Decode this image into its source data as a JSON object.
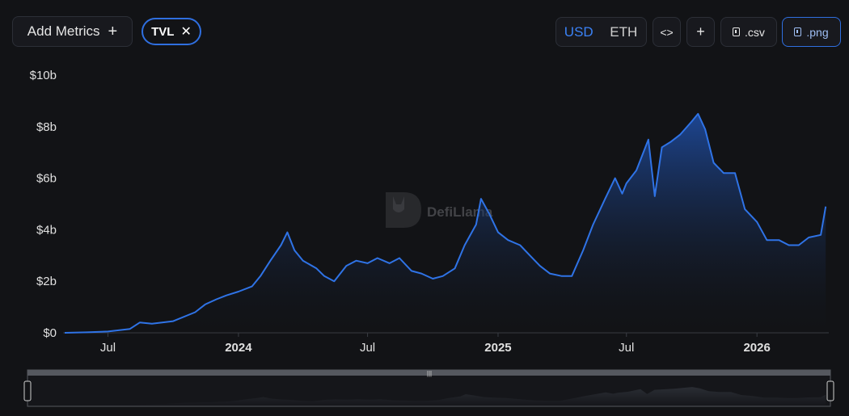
{
  "toolbar": {
    "add_metrics_label": "Add Metrics",
    "add_metrics_icon": "plus-icon",
    "metric_chip_label": "TVL",
    "metric_chip_icon": "close-icon",
    "currency_usd": "USD",
    "currency_eth": "ETH",
    "selected_currency": "USD",
    "embed_icon": "code-icon",
    "add_icon": "plus-icon",
    "csv_label": ".csv",
    "png_label": ".png",
    "download_icon": "download-file-icon"
  },
  "watermark": {
    "text": "DefiLlama",
    "icon": "llama-logo-icon"
  },
  "colors": {
    "line": "#2f73e6",
    "accent": "#3b82f6",
    "background": "#121316"
  },
  "chart_data": {
    "type": "area",
    "series": [
      {
        "name": "TVL",
        "points": [
          [
            "2023-05-01",
            0.0
          ],
          [
            "2023-06-01",
            0.02
          ],
          [
            "2023-07-01",
            0.05
          ],
          [
            "2023-08-01",
            0.15
          ],
          [
            "2023-08-15",
            0.4
          ],
          [
            "2023-09-01",
            0.35
          ],
          [
            "2023-10-01",
            0.45
          ],
          [
            "2023-11-01",
            0.8
          ],
          [
            "2023-11-15",
            1.1
          ],
          [
            "2023-12-01",
            1.3
          ],
          [
            "2023-12-15",
            1.45
          ],
          [
            "2024-01-01",
            1.6
          ],
          [
            "2024-01-20",
            1.8
          ],
          [
            "2024-02-01",
            2.2
          ],
          [
            "2024-02-15",
            2.8
          ],
          [
            "2024-03-01",
            3.4
          ],
          [
            "2024-03-10",
            3.9
          ],
          [
            "2024-03-20",
            3.2
          ],
          [
            "2024-04-01",
            2.8
          ],
          [
            "2024-04-20",
            2.5
          ],
          [
            "2024-05-01",
            2.2
          ],
          [
            "2024-05-15",
            2.0
          ],
          [
            "2024-06-01",
            2.6
          ],
          [
            "2024-06-15",
            2.8
          ],
          [
            "2024-07-01",
            2.7
          ],
          [
            "2024-07-15",
            2.9
          ],
          [
            "2024-08-01",
            2.7
          ],
          [
            "2024-08-15",
            2.9
          ],
          [
            "2024-09-01",
            2.4
          ],
          [
            "2024-09-15",
            2.3
          ],
          [
            "2024-10-01",
            2.1
          ],
          [
            "2024-10-15",
            2.2
          ],
          [
            "2024-11-01",
            2.5
          ],
          [
            "2024-11-15",
            3.4
          ],
          [
            "2024-12-01",
            4.2
          ],
          [
            "2024-12-08",
            5.2
          ],
          [
            "2024-12-20",
            4.6
          ],
          [
            "2025-01-01",
            3.9
          ],
          [
            "2025-01-15",
            3.6
          ],
          [
            "2025-02-01",
            3.4
          ],
          [
            "2025-02-15",
            3.0
          ],
          [
            "2025-03-01",
            2.6
          ],
          [
            "2025-03-15",
            2.3
          ],
          [
            "2025-04-01",
            2.2
          ],
          [
            "2025-04-15",
            2.2
          ],
          [
            "2025-05-01",
            3.2
          ],
          [
            "2025-05-15",
            4.2
          ],
          [
            "2025-06-01",
            5.2
          ],
          [
            "2025-06-15",
            6.0
          ],
          [
            "2025-06-25",
            5.4
          ],
          [
            "2025-07-01",
            5.8
          ],
          [
            "2025-07-15",
            6.3
          ],
          [
            "2025-08-01",
            7.5
          ],
          [
            "2025-08-10",
            5.3
          ],
          [
            "2025-08-20",
            7.2
          ],
          [
            "2025-09-01",
            7.4
          ],
          [
            "2025-09-15",
            7.7
          ],
          [
            "2025-10-01",
            8.2
          ],
          [
            "2025-10-10",
            8.5
          ],
          [
            "2025-10-20",
            7.9
          ],
          [
            "2025-11-01",
            6.6
          ],
          [
            "2025-11-15",
            6.2
          ],
          [
            "2025-12-01",
            6.2
          ],
          [
            "2025-12-15",
            4.8
          ],
          [
            "2026-01-01",
            4.3
          ],
          [
            "2026-01-15",
            3.6
          ],
          [
            "2026-02-01",
            3.6
          ],
          [
            "2026-02-15",
            3.4
          ],
          [
            "2026-03-01",
            3.4
          ],
          [
            "2026-03-15",
            3.7
          ],
          [
            "2026-04-01",
            3.8
          ],
          [
            "2026-04-08",
            4.9
          ]
        ]
      }
    ],
    "x_ticks": [
      {
        "date": "2023-07-01",
        "label": "Jul",
        "bold": false
      },
      {
        "date": "2024-01-01",
        "label": "2024",
        "bold": true
      },
      {
        "date": "2024-07-01",
        "label": "Jul",
        "bold": false
      },
      {
        "date": "2025-01-01",
        "label": "2025",
        "bold": true
      },
      {
        "date": "2025-07-01",
        "label": "Jul",
        "bold": false
      },
      {
        "date": "2026-01-01",
        "label": "2026",
        "bold": true
      }
    ],
    "y_ticks": [
      {
        "value": 0,
        "label": "$0"
      },
      {
        "value": 2,
        "label": "$2b"
      },
      {
        "value": 4,
        "label": "$4b"
      },
      {
        "value": 6,
        "label": "$6b"
      },
      {
        "value": 8,
        "label": "$8b"
      },
      {
        "value": 10,
        "label": "$10b"
      }
    ],
    "xlim": [
      "2023-05-01",
      "2026-04-10"
    ],
    "ylim": [
      0,
      10
    ],
    "y_unit": "billion USD",
    "grid": false,
    "legend": "none",
    "range_slider": true
  }
}
